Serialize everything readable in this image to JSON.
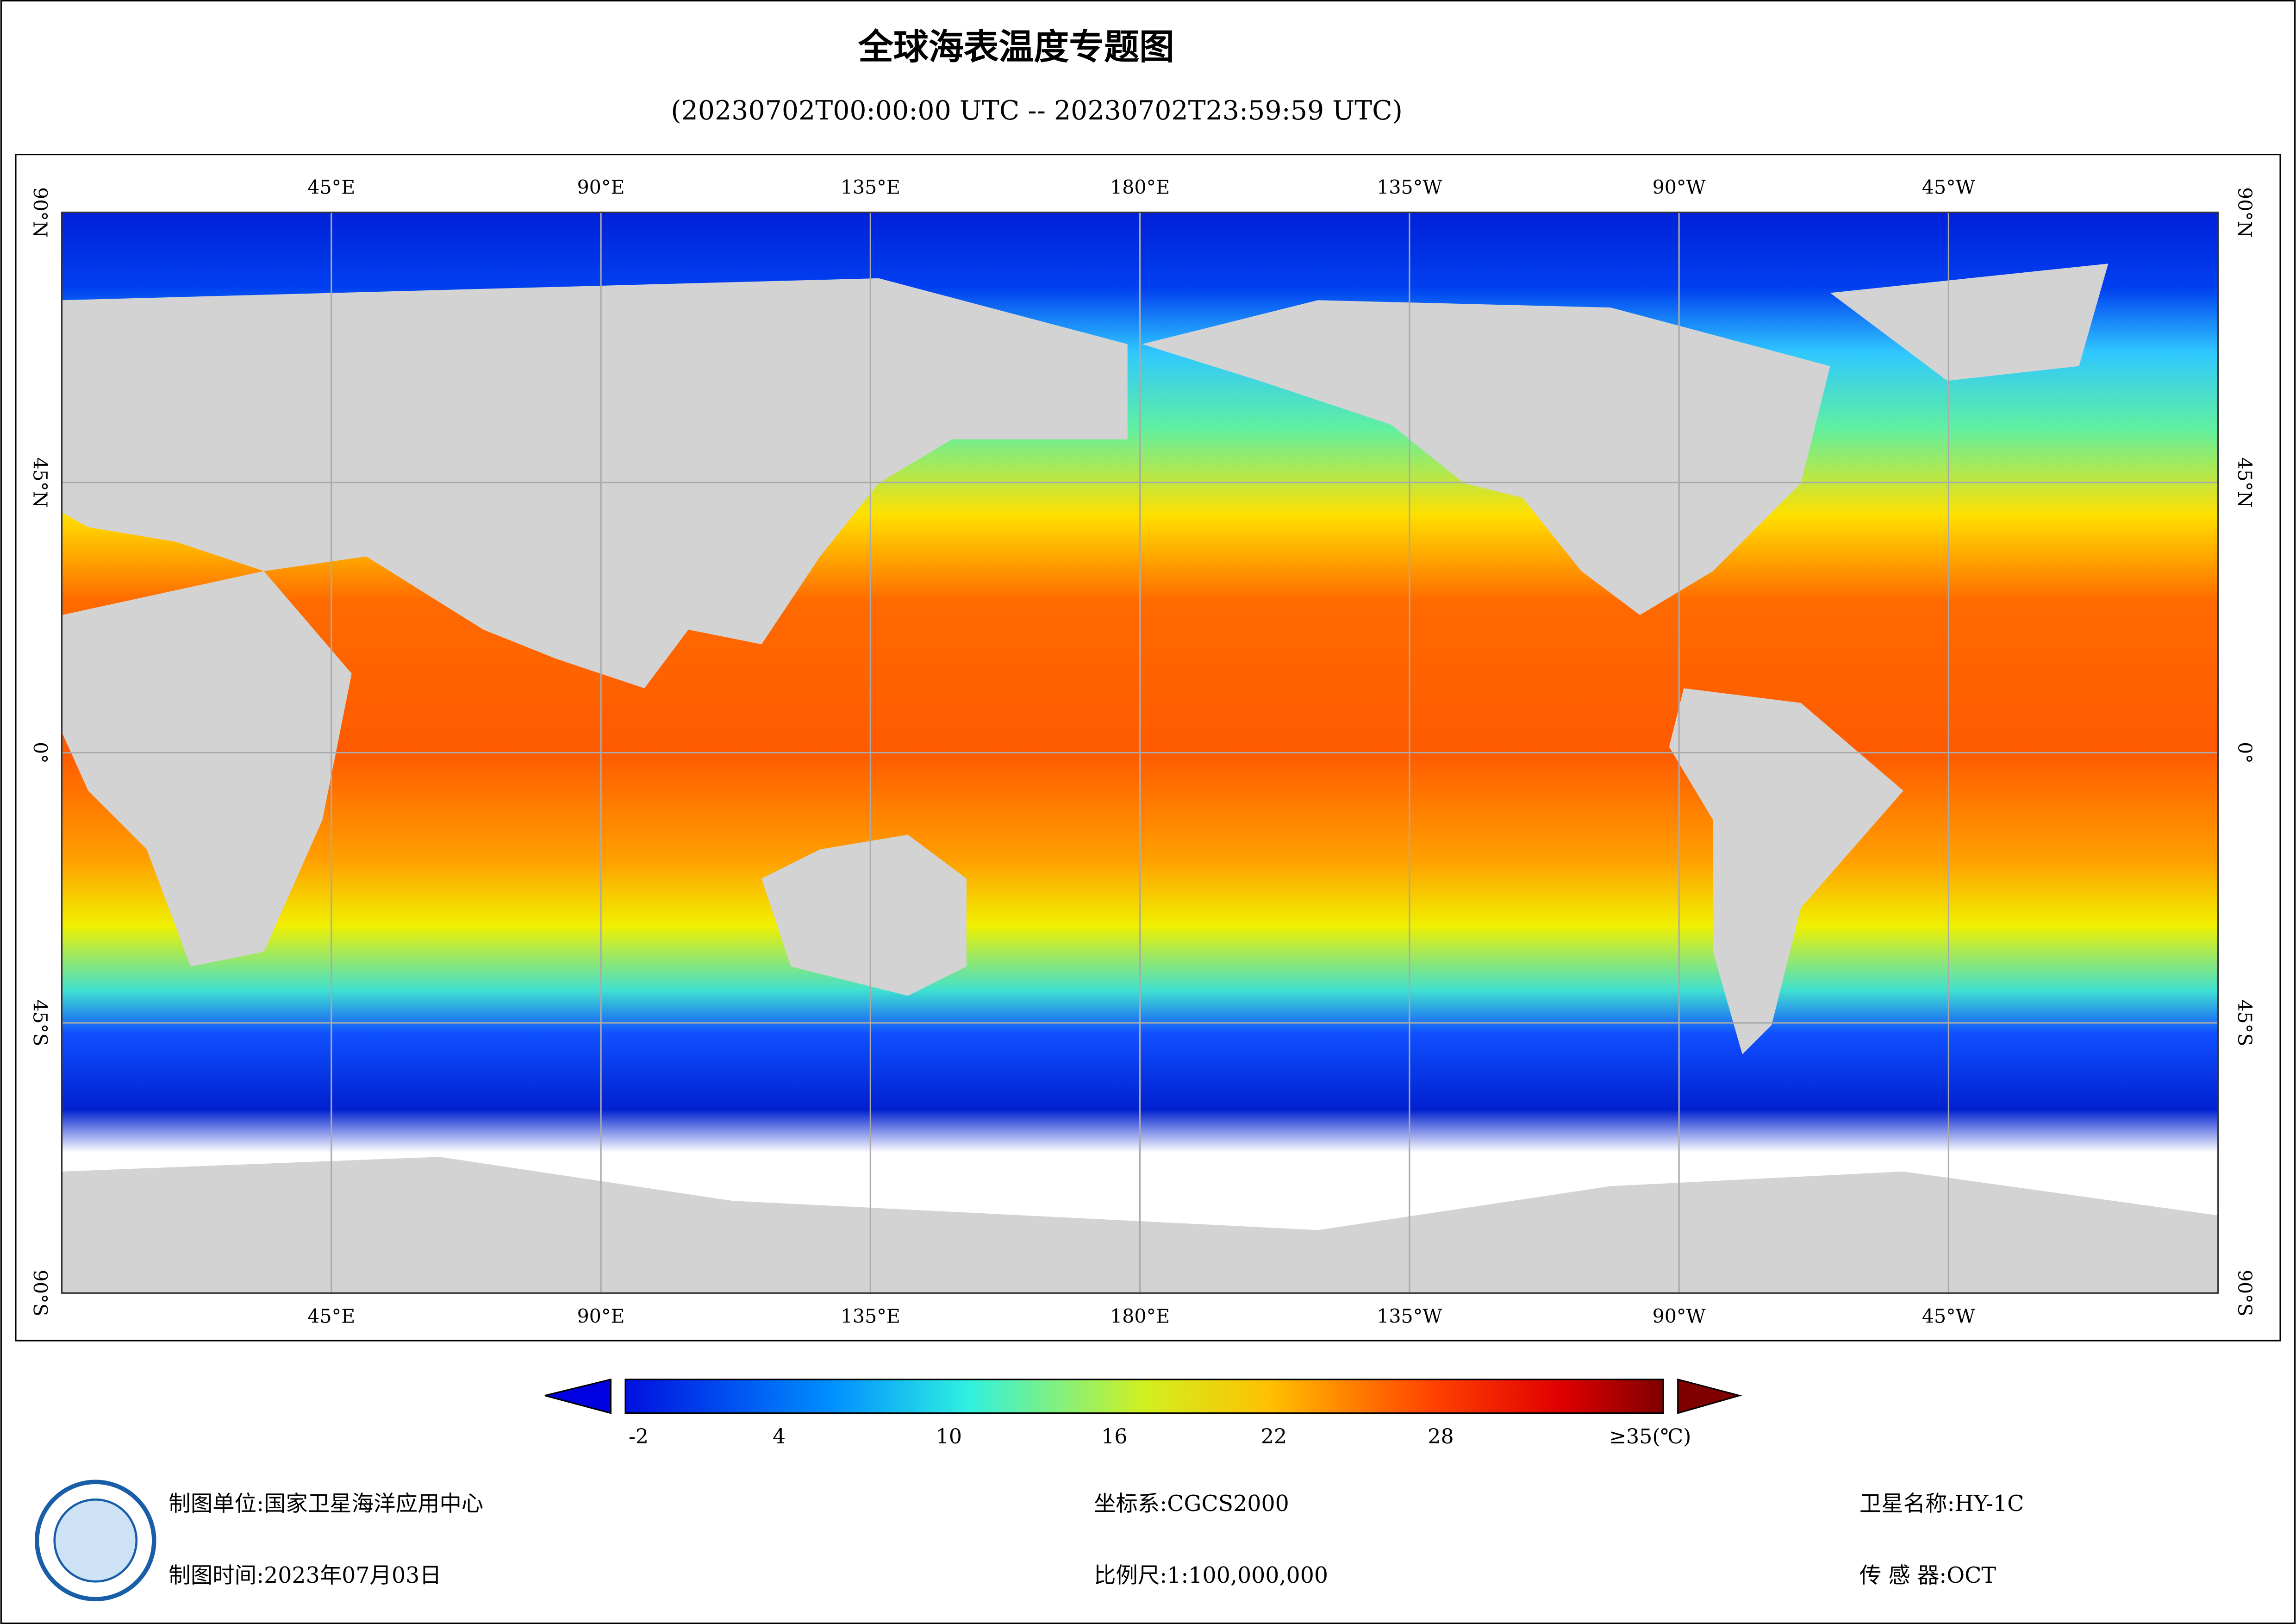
{
  "header": {
    "title": "全球海表温度专题图",
    "subtitle": "(20230702T00:00:00 UTC -- 20230702T23:59:59 UTC)"
  },
  "map": {
    "lon_labels": [
      "45°E",
      "90°E",
      "135°E",
      "180°E",
      "135°W",
      "90°W",
      "45°W"
    ],
    "lat_labels": [
      "90°N",
      "45°N",
      "0°",
      "45°S",
      "90°S"
    ]
  },
  "colorbar": {
    "labels": [
      "-2",
      "4",
      "10",
      "16",
      "22",
      "28",
      "≥35(℃)"
    ]
  },
  "footer": {
    "unit": "制图单位:国家卫星海洋应用中心",
    "time": "制图时间:2023年07月03日",
    "crs": "坐标系:CGCS2000",
    "scale": "比例尺:1:100,000,000",
    "satellite": "卫星名称:HY-1C",
    "sensor": "传 感 器:OCT"
  }
}
